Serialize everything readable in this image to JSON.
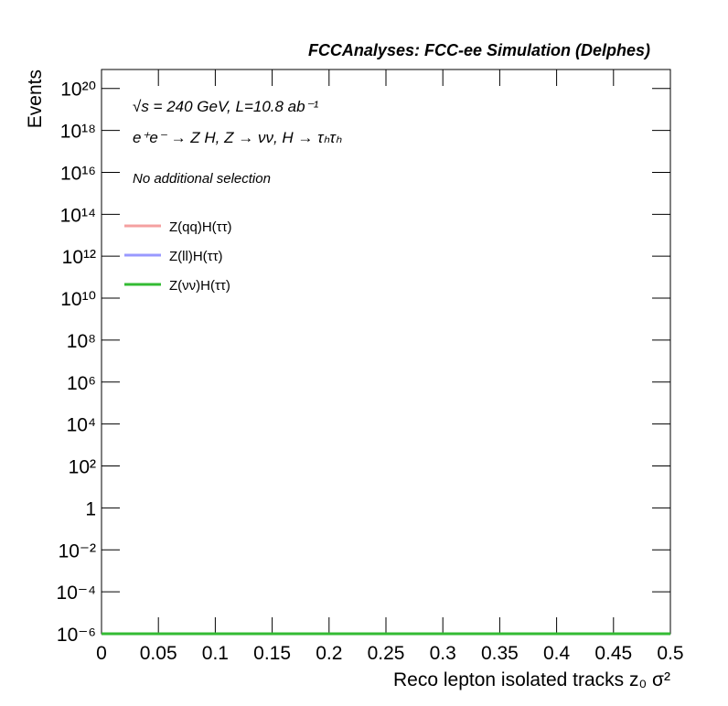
{
  "chart_data": {
    "type": "line",
    "title": "FCCAnalyses: FCC-ee Simulation (Delphes)",
    "x_label": "Reco lepton isolated tracks z₀ σ²",
    "y_label": "Events",
    "annotations": [
      "√s = 240 GeV, L=10.8 ab⁻¹",
      "e⁺e⁻ → Z H, Z → νν, H → τₕτₕ",
      "No additional selection"
    ],
    "x": [
      0,
      0.5
    ],
    "series": [
      {
        "name": "Z(qq)H(ττ)",
        "color": "#f4a0a0",
        "values": [
          1e-06,
          1e-06
        ]
      },
      {
        "name": "Z(ll)H(ττ)",
        "color": "#9999ff",
        "values": [
          1e-06,
          1e-06
        ]
      },
      {
        "name": "Z(νν)H(ττ)",
        "color": "#33bb33",
        "values": [
          1e-06,
          1e-06
        ]
      }
    ],
    "xlim": [
      0,
      0.5
    ],
    "xticks": [
      0,
      0.05,
      0.1,
      0.15,
      0.2,
      0.25,
      0.3,
      0.35,
      0.4,
      0.45,
      0.5
    ],
    "ylim": [
      1e-06,
      8e+20
    ],
    "yscale": "log",
    "yticks": [
      {
        "value": 1e-06,
        "label": "10⁻⁶"
      },
      {
        "value": 0.0001,
        "label": "10⁻⁴"
      },
      {
        "value": 0.01,
        "label": "10⁻²"
      },
      1,
      {
        "value": 100.0,
        "label": "10²"
      },
      {
        "value": 10000.0,
        "label": "10⁴"
      },
      {
        "value": 1000000.0,
        "label": "10⁶"
      },
      {
        "value": 100000000.0,
        "label": "10⁸"
      },
      {
        "value": 10000000000.0,
        "label": "10¹⁰"
      },
      {
        "value": 1000000000000.0,
        "label": "10¹²"
      },
      {
        "value": 100000000000000.0,
        "label": "10¹⁴"
      },
      {
        "value": 1e+16,
        "label": "10¹⁶"
      },
      {
        "value": 1e+18,
        "label": "10¹⁸"
      },
      {
        "value": 1e+20,
        "label": "10²⁰"
      }
    ],
    "legend": "upper left"
  }
}
